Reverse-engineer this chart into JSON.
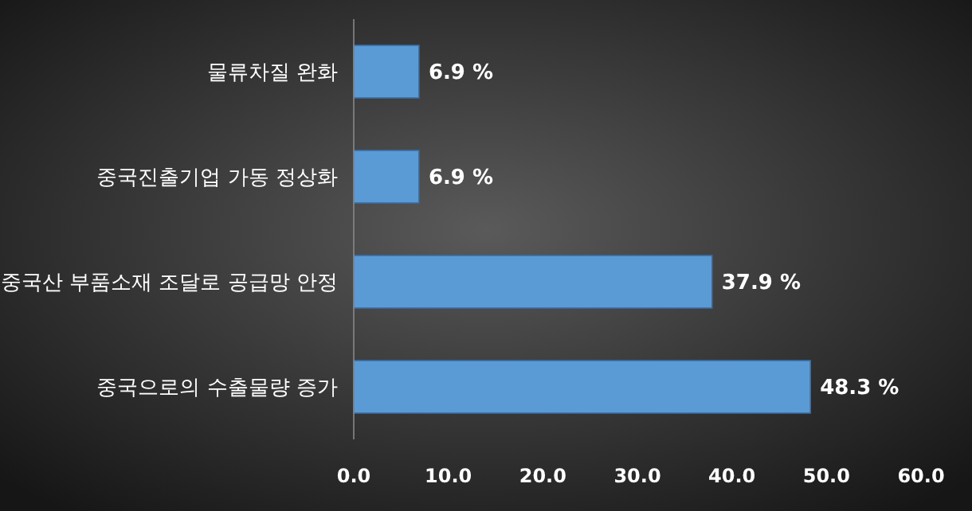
{
  "chart_data": {
    "type": "bar",
    "orientation": "horizontal",
    "categories": [
      "물류차질 완화",
      "중국진출기업 가동 정상화",
      "중국산 부품소재 조달로 공급망 안정",
      "중국으로의 수출물량 증가"
    ],
    "values": [
      6.9,
      6.9,
      37.9,
      48.3
    ],
    "value_labels": [
      "6.9 %",
      "6.9 %",
      "37.9 %",
      "48.3 %"
    ],
    "color": "#5b9bd5",
    "xlim": [
      0,
      60
    ],
    "xticks": [
      {
        "value": 0,
        "label": "0.0"
      },
      {
        "value": 10,
        "label": "10.0"
      },
      {
        "value": 20,
        "label": "20.0"
      },
      {
        "value": 30,
        "label": "30.0"
      },
      {
        "value": 40,
        "label": "40.0"
      },
      {
        "value": 50,
        "label": "50.0"
      },
      {
        "value": 60,
        "label": "60.0"
      }
    ],
    "grid": false
  }
}
